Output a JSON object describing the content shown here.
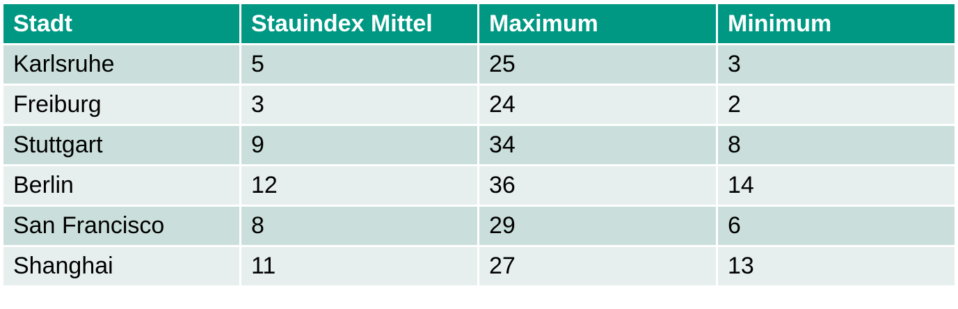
{
  "table": {
    "headers": [
      "Stadt",
      "Stauindex Mittel",
      "Maximum",
      "Minimum"
    ],
    "rows": [
      [
        "Karlsruhe",
        "5",
        "25",
        "3"
      ],
      [
        "Freiburg",
        "3",
        "24",
        "2"
      ],
      [
        "Stuttgart",
        "9",
        "34",
        "8"
      ],
      [
        "Berlin",
        "12",
        "36",
        "14"
      ],
      [
        "San Francisco",
        "8",
        "29",
        "6"
      ],
      [
        "Shanghai",
        "11",
        "27",
        "13"
      ]
    ]
  },
  "colors": {
    "header_bg": "#009883",
    "header_text": "#ffffff",
    "row_odd_bg": "#cadfdb",
    "row_even_bg": "#e6efed",
    "grid_line": "#ffffff"
  }
}
